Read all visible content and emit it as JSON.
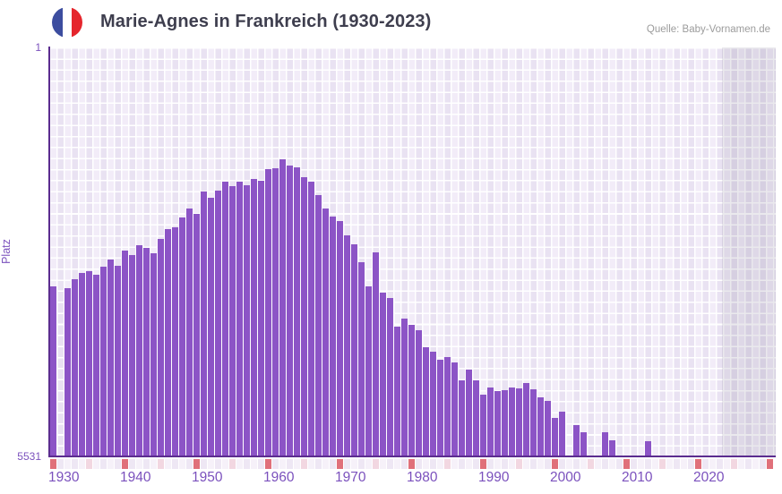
{
  "header": {
    "title": "Marie-Agnes in Frankreich (1930-2023)",
    "source": "Quelle: Baby-Vornamen.de",
    "flag": "france-flag-icon"
  },
  "axes": {
    "y_title": "Platz",
    "y_tick_top": "1",
    "y_tick_bottom": "5531",
    "x_ticks": [
      "1930",
      "1940",
      "1950",
      "1960",
      "1970",
      "1980",
      "1990",
      "2000",
      "2010",
      "2020"
    ]
  },
  "colors": {
    "bar": "#8c54c6",
    "axis_line": "#5b2c8f",
    "tick_text": "#7b51bd",
    "title_text": "#3e3e4e",
    "source_text": "#9c9c9c",
    "grid_cell_light": "#f2ecf8",
    "grid_cell_dark": "#e9e2f2",
    "strip_decade_red": "#e0707a",
    "strip_half_decade_pink": "#f2d7e1",
    "future_shade": "rgba(96,86,118,0.13)",
    "flag_blue": "#3c4d9f",
    "flag_red": "#e5262d"
  },
  "chart_data": {
    "type": "bar",
    "title": "Marie-Agnes in Frankreich (1930-2023)",
    "xlabel": "",
    "ylabel": "Platz",
    "legend": "none",
    "grid": true,
    "y_axis": {
      "min": 1,
      "max": 5531,
      "inverted": true,
      "tick_labels": [
        "1",
        "5531"
      ]
    },
    "x_axis": {
      "domain_start": 1930,
      "domain_end": 2031,
      "decade_ticks": [
        1930,
        1940,
        1950,
        1960,
        1970,
        1980,
        1990,
        2000,
        2010,
        2020
      ],
      "shaded_no_data_from": 2024
    },
    "note": "Bars show yearly rank (Platz); rank 1 at top. Null = name not ranked that year.",
    "series": [
      {
        "name": "Platz",
        "points": [
          [
            1930,
            3230
          ],
          [
            1931,
            null
          ],
          [
            1932,
            3255
          ],
          [
            1933,
            3135
          ],
          [
            1934,
            3050
          ],
          [
            1935,
            3025
          ],
          [
            1936,
            3075
          ],
          [
            1937,
            2965
          ],
          [
            1938,
            2870
          ],
          [
            1939,
            2955
          ],
          [
            1940,
            2745
          ],
          [
            1941,
            2810
          ],
          [
            1942,
            2675
          ],
          [
            1943,
            2710
          ],
          [
            1944,
            2785
          ],
          [
            1945,
            2590
          ],
          [
            1946,
            2455
          ],
          [
            1947,
            2435
          ],
          [
            1948,
            2300
          ],
          [
            1949,
            2180
          ],
          [
            1950,
            2250
          ],
          [
            1951,
            1950
          ],
          [
            1952,
            2035
          ],
          [
            1953,
            1935
          ],
          [
            1954,
            1815
          ],
          [
            1955,
            1875
          ],
          [
            1956,
            1815
          ],
          [
            1957,
            1865
          ],
          [
            1958,
            1780
          ],
          [
            1959,
            1805
          ],
          [
            1960,
            1645
          ],
          [
            1961,
            1635
          ],
          [
            1962,
            1515
          ],
          [
            1963,
            1600
          ],
          [
            1964,
            1620
          ],
          [
            1965,
            1755
          ],
          [
            1966,
            1815
          ],
          [
            1967,
            1995
          ],
          [
            1968,
            2180
          ],
          [
            1969,
            2290
          ],
          [
            1970,
            2350
          ],
          [
            1971,
            2540
          ],
          [
            1972,
            2665
          ],
          [
            1973,
            2905
          ],
          [
            1974,
            3230
          ],
          [
            1975,
            2770
          ],
          [
            1976,
            3315
          ],
          [
            1977,
            3390
          ],
          [
            1978,
            3775
          ],
          [
            1979,
            3665
          ],
          [
            1980,
            3750
          ],
          [
            1981,
            3825
          ],
          [
            1982,
            4055
          ],
          [
            1983,
            4115
          ],
          [
            1984,
            4225
          ],
          [
            1985,
            4190
          ],
          [
            1986,
            4260
          ],
          [
            1987,
            4505
          ],
          [
            1988,
            4355
          ],
          [
            1989,
            4505
          ],
          [
            1990,
            4695
          ],
          [
            1991,
            4600
          ],
          [
            1992,
            4650
          ],
          [
            1993,
            4635
          ],
          [
            1994,
            4600
          ],
          [
            1995,
            4610
          ],
          [
            1996,
            4540
          ],
          [
            1997,
            4625
          ],
          [
            1998,
            4735
          ],
          [
            1999,
            4780
          ],
          [
            2000,
            5010
          ],
          [
            2001,
            4925
          ],
          [
            2002,
            null
          ],
          [
            2003,
            5110
          ],
          [
            2004,
            5205
          ],
          [
            2005,
            null
          ],
          [
            2006,
            null
          ],
          [
            2007,
            5205
          ],
          [
            2008,
            5315
          ],
          [
            2009,
            null
          ],
          [
            2010,
            null
          ],
          [
            2011,
            null
          ],
          [
            2012,
            null
          ],
          [
            2013,
            5325
          ],
          [
            2014,
            null
          ],
          [
            2015,
            null
          ],
          [
            2016,
            null
          ],
          [
            2017,
            null
          ],
          [
            2018,
            null
          ],
          [
            2019,
            null
          ],
          [
            2020,
            null
          ],
          [
            2021,
            null
          ],
          [
            2022,
            null
          ],
          [
            2023,
            null
          ]
        ]
      }
    ]
  }
}
